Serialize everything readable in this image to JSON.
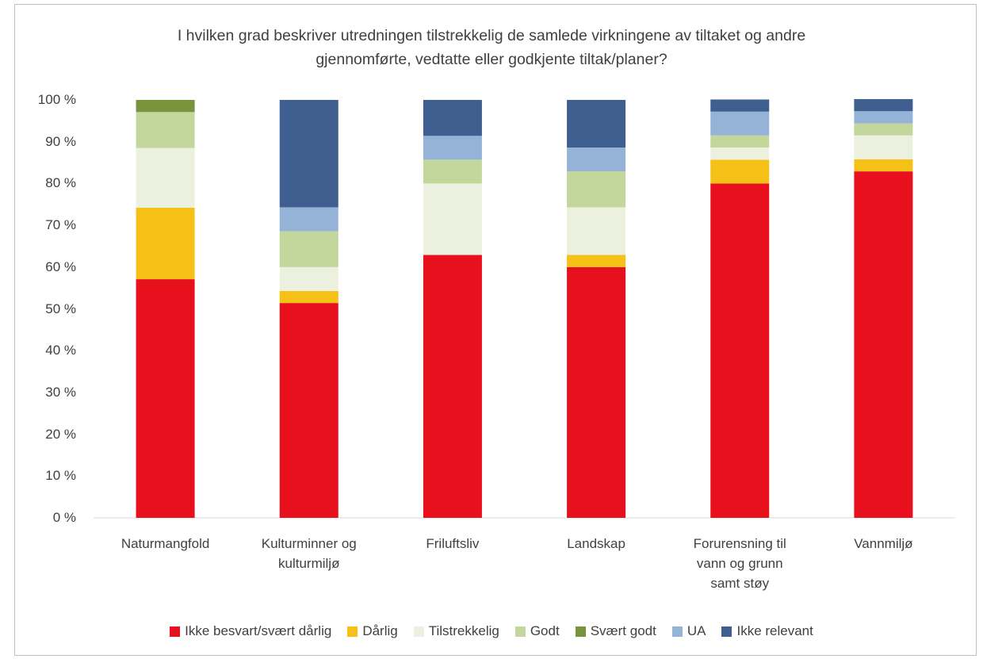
{
  "chart_data": {
    "type": "stacked_bar",
    "title": "I hvilken  grad beskriver utredningen tilstrekkelig de samlede virkningene av tiltaket og andre gjennomførte, vedtatte eller godkjente tiltak/planer?",
    "categories": [
      "Naturmangfold",
      "Kulturminner og kulturmiljø",
      "Friluftsliv",
      "Landskap",
      "Forurensning til vann og grunn samt støy",
      "Vannmiljø"
    ],
    "series": [
      {
        "name": "Ikke besvart/svært dårlig",
        "color": "#e8101c",
        "values": [
          57.1,
          51.4,
          62.9,
          60.0,
          80.0,
          82.9
        ]
      },
      {
        "name": "Dårlig",
        "color": "#f5c116",
        "values": [
          17.1,
          2.9,
          0,
          2.9,
          5.7,
          2.9
        ]
      },
      {
        "name": "Tilstrekkelig",
        "color": "#ebf1de",
        "values": [
          14.3,
          5.7,
          17.1,
          11.4,
          2.9,
          5.7
        ]
      },
      {
        "name": "Godt",
        "color": "#c3d69b",
        "values": [
          8.6,
          8.6,
          5.7,
          8.6,
          2.9,
          2.9
        ]
      },
      {
        "name": "Svært godt",
        "color": "#77933c",
        "values": [
          2.9,
          0,
          0,
          0,
          0,
          0
        ]
      },
      {
        "name": "UA",
        "color": "#95b3d7",
        "values": [
          0,
          5.7,
          5.7,
          5.7,
          5.7,
          2.9
        ]
      },
      {
        "name": "Ikke relevant",
        "color": "#3e5f8f",
        "values": [
          0,
          25.7,
          8.6,
          11.4,
          2.9,
          2.9
        ]
      }
    ],
    "ylim": [
      0,
      100
    ],
    "yticks": [
      {
        "value": 0,
        "label": "0 %"
      },
      {
        "value": 10,
        "label": "10 %"
      },
      {
        "value": 20,
        "label": "20 %"
      },
      {
        "value": 30,
        "label": "30 %"
      },
      {
        "value": 40,
        "label": "40 %"
      },
      {
        "value": 50,
        "label": "50 %"
      },
      {
        "value": 60,
        "label": "60 %"
      },
      {
        "value": 70,
        "label": "70 %"
      },
      {
        "value": 80,
        "label": "80 %"
      },
      {
        "value": 90,
        "label": "90 %"
      },
      {
        "value": 100,
        "label": "100 %"
      }
    ],
    "legend": "bottom",
    "grid": false
  }
}
